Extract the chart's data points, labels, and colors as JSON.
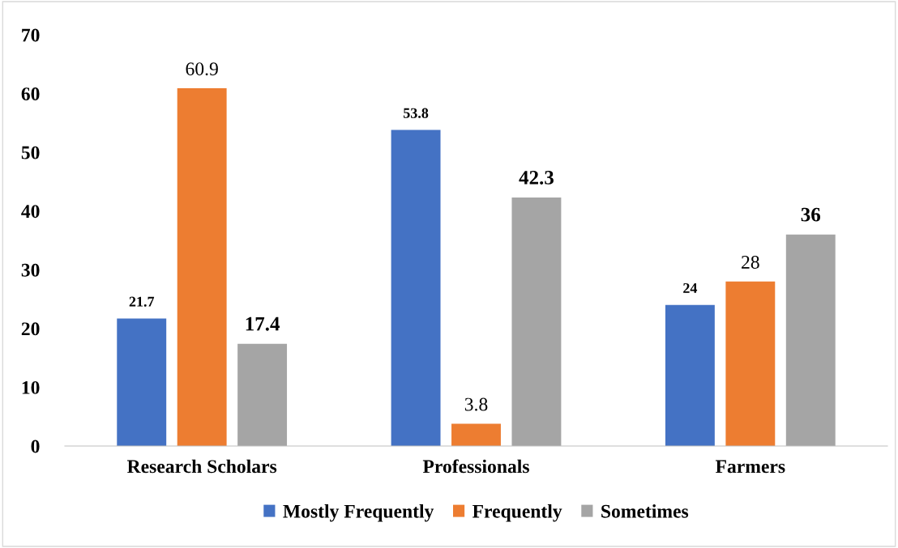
{
  "chart_data": {
    "type": "bar",
    "categories": [
      "Research Scholars",
      "Professionals",
      "Farmers"
    ],
    "series": [
      {
        "name": "Mostly Frequently",
        "color": "#4472c4",
        "values": [
          21.7,
          53.8,
          24
        ]
      },
      {
        "name": "Frequently",
        "color": "#ed7d31",
        "values": [
          60.9,
          3.8,
          28
        ]
      },
      {
        "name": "Sometimes",
        "color": "#a5a5a5",
        "values": [
          17.4,
          42.3,
          36
        ]
      }
    ],
    "ylim": [
      0,
      70
    ],
    "yticks": [
      0,
      10,
      20,
      30,
      40,
      50,
      60,
      70
    ],
    "grid": false,
    "legend": "bottom",
    "data_labels": true
  }
}
